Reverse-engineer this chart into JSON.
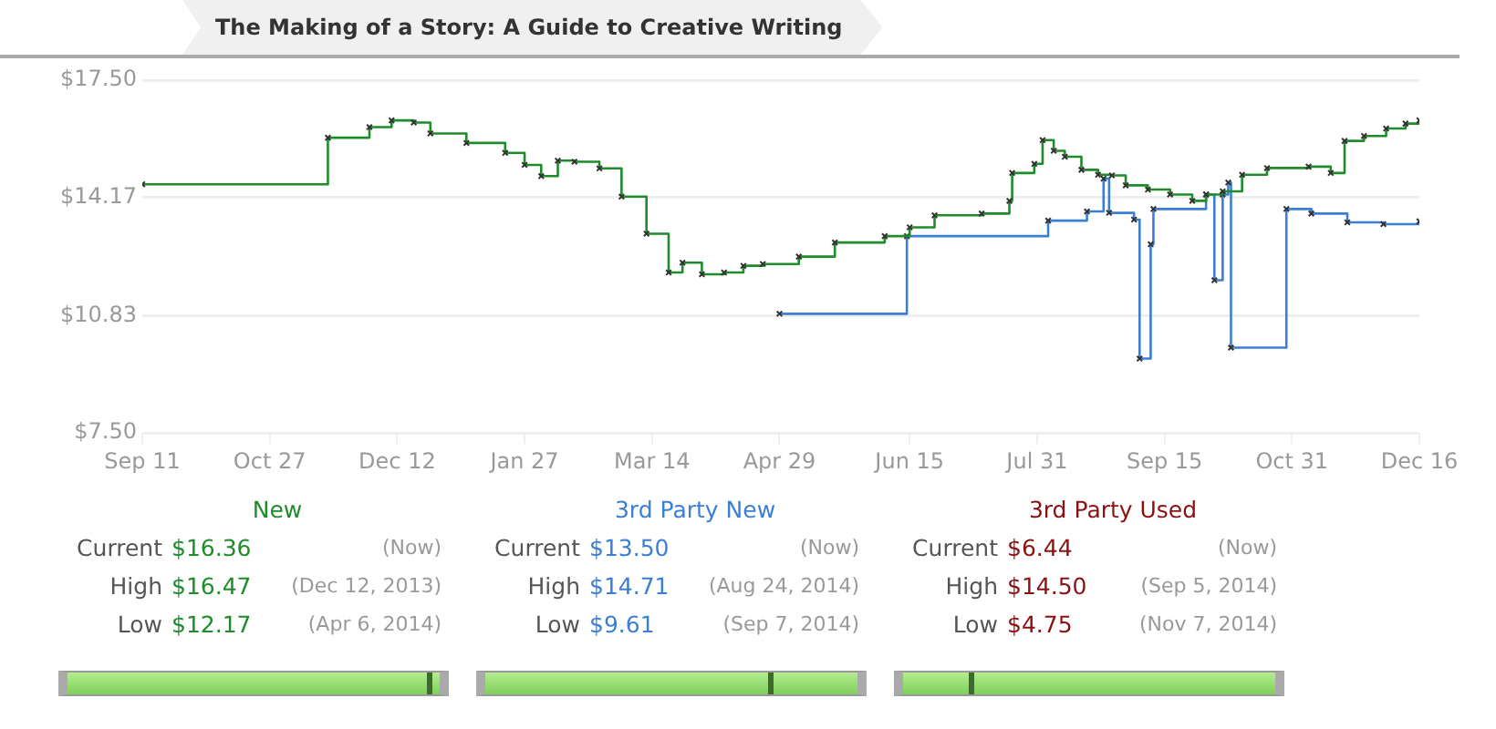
{
  "chart_data": {
    "type": "step",
    "title": "The Making of a Story: A Guide to Creative Writing",
    "xlim": [
      "2013-09-11",
      "2014-12-16"
    ],
    "xticks": [
      {
        "value": "2013-09-11",
        "label": "Sep 11"
      },
      {
        "value": "2013-10-27",
        "label": "Oct 27"
      },
      {
        "value": "2013-12-12",
        "label": "Dec 12"
      },
      {
        "value": "2014-01-27",
        "label": "Jan 27"
      },
      {
        "value": "2014-03-14",
        "label": "Mar 14"
      },
      {
        "value": "2014-04-29",
        "label": "Apr 29"
      },
      {
        "value": "2014-06-15",
        "label": "Jun 15"
      },
      {
        "value": "2014-07-31",
        "label": "Jul 31"
      },
      {
        "value": "2014-09-15",
        "label": "Sep 15"
      },
      {
        "value": "2014-10-31",
        "label": "Oct 31"
      },
      {
        "value": "2014-12-16",
        "label": "Dec 16"
      }
    ],
    "ylim": [
      7.5,
      17.5
    ],
    "yticks": [
      {
        "value": 7.5,
        "label": "$7.50"
      },
      {
        "value": 10.83,
        "label": "$10.83"
      },
      {
        "value": 14.17,
        "label": "$14.17"
      },
      {
        "value": 17.5,
        "label": "$17.50"
      }
    ],
    "grid": "y",
    "legend": false,
    "marker": "cross",
    "line_style": "solid",
    "series": [
      {
        "name": "New",
        "color": "#1e8c2a",
        "x": [
          "2013-09-11",
          "2013-11-17",
          "2013-12-02",
          "2013-12-10",
          "2013-12-18",
          "2013-12-24",
          "2014-01-06",
          "2014-01-20",
          "2014-01-27",
          "2014-02-02",
          "2014-02-08",
          "2014-02-14",
          "2014-02-23",
          "2014-03-03",
          "2014-03-12",
          "2014-03-20",
          "2014-03-25",
          "2014-04-01",
          "2014-04-09",
          "2014-04-16",
          "2014-04-23",
          "2014-05-06",
          "2014-05-19",
          "2014-06-06",
          "2014-06-15",
          "2014-06-24",
          "2014-07-11",
          "2014-07-21",
          "2014-07-22",
          "2014-07-30",
          "2014-08-02",
          "2014-08-06",
          "2014-08-10",
          "2014-08-16",
          "2014-08-22",
          "2014-08-27",
          "2014-09-01",
          "2014-09-09",
          "2014-09-17",
          "2014-09-25",
          "2014-09-30",
          "2014-10-06",
          "2014-10-13",
          "2014-10-22",
          "2014-11-06",
          "2014-11-14",
          "2014-11-19",
          "2014-11-26",
          "2014-12-04",
          "2014-12-11",
          "2014-12-16"
        ],
        "values": [
          14.55,
          15.87,
          16.17,
          16.36,
          16.3,
          15.99,
          15.72,
          15.44,
          15.1,
          14.78,
          15.22,
          15.19,
          15.0,
          14.2,
          13.15,
          12.05,
          12.33,
          12.0,
          12.05,
          12.24,
          12.29,
          12.5,
          12.9,
          13.08,
          13.33,
          13.67,
          13.72,
          14.08,
          14.87,
          15.13,
          15.8,
          15.5,
          15.33,
          14.96,
          14.82,
          14.8,
          14.52,
          14.4,
          14.26,
          14.08,
          14.26,
          14.35,
          14.82,
          15.01,
          15.05,
          14.87,
          15.78,
          15.92,
          16.13,
          16.27,
          16.36
        ]
      },
      {
        "name": "3rd Party New",
        "color": "#3a7fd5",
        "x": [
          "2014-04-29",
          "2014-06-14",
          "2014-08-04",
          "2014-08-18",
          "2014-08-24",
          "2014-08-26",
          "2014-09-04",
          "2014-09-06",
          "2014-09-10",
          "2014-09-11",
          "2014-09-30",
          "2014-10-03",
          "2014-10-06",
          "2014-10-08",
          "2014-10-09",
          "2014-10-29",
          "2014-11-07",
          "2014-11-20",
          "2014-12-03",
          "2014-12-16"
        ],
        "values": [
          10.88,
          13.08,
          13.52,
          13.78,
          14.71,
          13.74,
          13.55,
          9.61,
          12.85,
          13.85,
          14.26,
          11.83,
          14.26,
          14.6,
          9.92,
          13.85,
          13.72,
          13.47,
          13.42,
          13.5
        ]
      }
    ],
    "annotations": [
      "Current",
      "$16.36",
      "(Now)",
      "High",
      "$16.47",
      "(Dec 12, 2013)",
      "Low",
      "$12.17",
      "(Apr 6, 2014)",
      "Current",
      "$13.50",
      "(Now)",
      "High",
      "$14.71",
      "(Aug 24, 2014)",
      "Low",
      "$9.61",
      "(Sep 7, 2014)",
      "3rd Party Used",
      "Current",
      "$6.44",
      "(Now)",
      "High",
      "$14.50",
      "(Sep 5, 2014)",
      "Low",
      "$4.75",
      "(Nov 7, 2014)"
    ]
  }
}
